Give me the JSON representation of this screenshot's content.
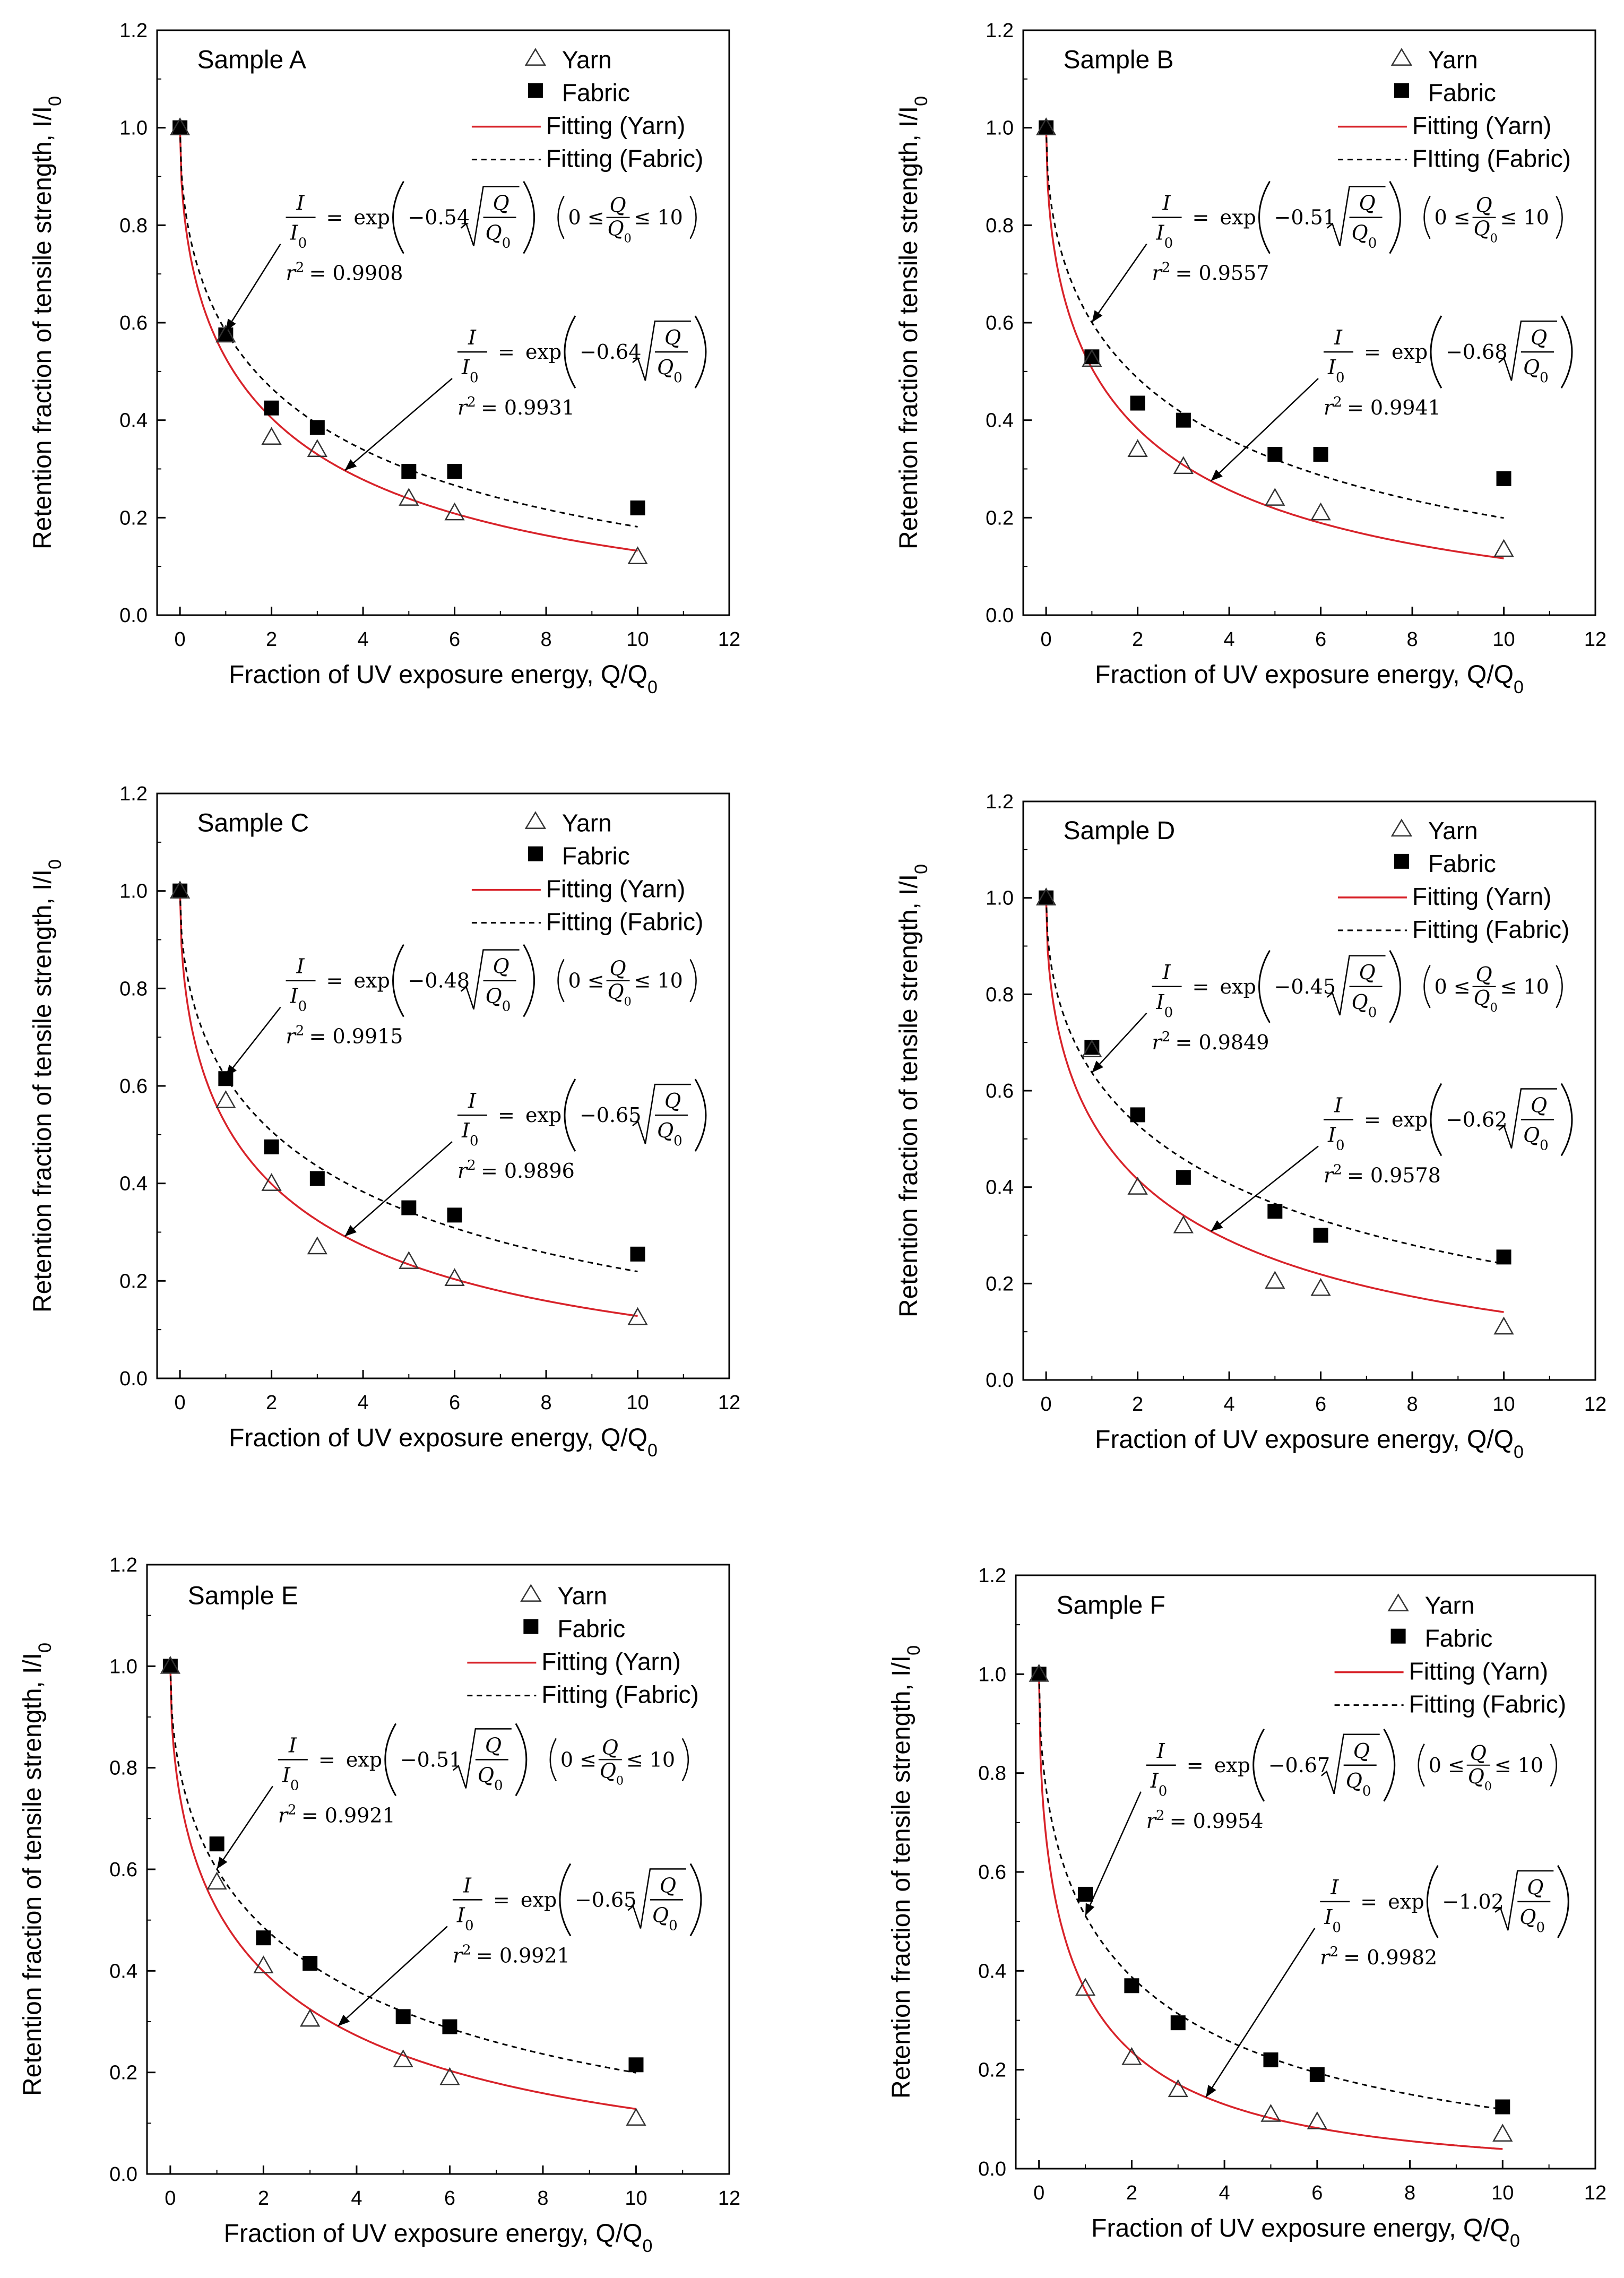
{
  "colors": {
    "yarn_fit": "#d8232a",
    "fabric_fit": "#000000",
    "axis": "#000000"
  },
  "chart_data": [
    {
      "type": "scatter",
      "title": "Sample A",
      "xlabel": "Fraction of UV exposure energy, Q/Q",
      "xlabel_sub": "0",
      "ylabel": "Retention fraction of tensile strength, I/I",
      "ylabel_sub": "0",
      "xlim": [
        -0.5,
        12
      ],
      "ylim": [
        0,
        1.2
      ],
      "x_ticks": [
        0,
        2,
        4,
        6,
        8,
        10,
        12
      ],
      "y_ticks": [
        0.0,
        0.2,
        0.4,
        0.6,
        0.8,
        1.0,
        1.2
      ],
      "legend": [
        "Yarn",
        "Fabric",
        "Fitting (Yarn)",
        "Fitting (Fabric)"
      ],
      "series": [
        {
          "name": "Yarn",
          "marker": "open-triangle",
          "x": [
            0,
            1,
            2,
            3,
            5,
            6,
            10
          ],
          "y": [
            1.0,
            0.575,
            0.365,
            0.34,
            0.24,
            0.21,
            0.12
          ]
        },
        {
          "name": "Fabric",
          "marker": "filled-square",
          "x": [
            0,
            1,
            2,
            3,
            5,
            6,
            10
          ],
          "y": [
            1.0,
            0.575,
            0.425,
            0.385,
            0.295,
            0.295,
            0.22
          ]
        }
      ],
      "fits": [
        {
          "name": "Fitting (Yarn)",
          "k": 0.64,
          "style": "solid-red",
          "text_a": "0.64",
          "r2": "0.9931",
          "range": ""
        },
        {
          "name": "Fitting (Fabric)",
          "k": 0.54,
          "style": "dashed-black",
          "text_a": "0.54",
          "r2": "0.9908",
          "range": "0 ≤ Q/Q0 ≤ 10"
        }
      ]
    },
    {
      "type": "scatter",
      "title": "Sample B",
      "xlabel": "Fraction of UV exposure energy, Q/Q",
      "xlabel_sub": "0",
      "ylabel": "Retention fraction of tensile strength, I/I",
      "ylabel_sub": "0",
      "xlim": [
        -0.5,
        12
      ],
      "ylim": [
        0,
        1.2
      ],
      "x_ticks": [
        0,
        2,
        4,
        6,
        8,
        10,
        12
      ],
      "y_ticks": [
        0.0,
        0.2,
        0.4,
        0.6,
        0.8,
        1.0,
        1.2
      ],
      "legend": [
        "Yarn",
        "Fabric",
        "Fitting (Yarn)",
        "FItting (Fabric)"
      ],
      "series": [
        {
          "name": "Yarn",
          "marker": "open-triangle",
          "x": [
            0,
            1,
            2,
            3,
            5,
            6,
            10
          ],
          "y": [
            1.0,
            0.525,
            0.34,
            0.305,
            0.24,
            0.21,
            0.135
          ]
        },
        {
          "name": "Fabric",
          "marker": "filled-square",
          "x": [
            0,
            1,
            2,
            3,
            5,
            6,
            10
          ],
          "y": [
            1.0,
            0.53,
            0.435,
            0.4,
            0.33,
            0.33,
            0.28
          ]
        }
      ],
      "fits": [
        {
          "name": "Fitting (Yarn)",
          "k": 0.68,
          "style": "solid-red",
          "text_a": "0.68",
          "r2": "0.9941",
          "range": ""
        },
        {
          "name": "FItting (Fabric)",
          "k": 0.51,
          "style": "dashed-black",
          "text_a": "0.51",
          "r2": "0.9557",
          "range": "0 ≤ Q/Q0 ≤ 10"
        }
      ]
    },
    {
      "type": "scatter",
      "title": "Sample C",
      "xlabel": "Fraction of UV exposure energy, Q/Q",
      "xlabel_sub": "0",
      "ylabel": "Retention fraction of tensile strength, I/I",
      "ylabel_sub": "0",
      "xlim": [
        -0.5,
        12
      ],
      "ylim": [
        0,
        1.2
      ],
      "x_ticks": [
        0,
        2,
        4,
        6,
        8,
        10,
        12
      ],
      "y_ticks": [
        0.0,
        0.2,
        0.4,
        0.6,
        0.8,
        1.0,
        1.2
      ],
      "legend": [
        "Yarn",
        "Fabric",
        "Fitting (Yarn)",
        "Fitting (Fabric)"
      ],
      "series": [
        {
          "name": "Yarn",
          "marker": "open-triangle",
          "x": [
            0,
            1,
            2,
            3,
            5,
            6,
            10
          ],
          "y": [
            1.0,
            0.57,
            0.4,
            0.27,
            0.24,
            0.205,
            0.125
          ]
        },
        {
          "name": "Fabric",
          "marker": "filled-square",
          "x": [
            0,
            1,
            2,
            3,
            5,
            6,
            10
          ],
          "y": [
            1.0,
            0.615,
            0.475,
            0.41,
            0.35,
            0.335,
            0.255
          ]
        }
      ],
      "fits": [
        {
          "name": "Fitting (Yarn)",
          "k": 0.65,
          "style": "solid-red",
          "text_a": "0.65",
          "r2": "0.9896",
          "range": ""
        },
        {
          "name": "Fitting (Fabric)",
          "k": 0.48,
          "style": "dashed-black",
          "text_a": "0.48",
          "r2": "0.9915",
          "range": "0 ≤ Q/Q0 ≤ 10"
        }
      ]
    },
    {
      "type": "scatter",
      "title": "Sample D",
      "xlabel": "Fraction of UV exposure energy, Q/Q",
      "xlabel_sub": "0",
      "ylabel": "Retention fraction of tensile strength, I/I",
      "ylabel_sub": "0",
      "xlim": [
        -0.5,
        12
      ],
      "ylim": [
        0,
        1.2
      ],
      "x_ticks": [
        0,
        2,
        4,
        6,
        8,
        10,
        12
      ],
      "y_ticks": [
        0.0,
        0.2,
        0.4,
        0.6,
        0.8,
        1.0,
        1.2
      ],
      "legend": [
        "Yarn",
        "Fabric",
        "Fitting (Yarn)",
        "Fitting (Fabric)"
      ],
      "series": [
        {
          "name": "Yarn",
          "marker": "open-triangle",
          "x": [
            0,
            1,
            2,
            3,
            5,
            6,
            10
          ],
          "y": [
            1.0,
            0.685,
            0.4,
            0.32,
            0.205,
            0.19,
            0.11
          ]
        },
        {
          "name": "Fabric",
          "marker": "filled-square",
          "x": [
            0,
            1,
            2,
            3,
            5,
            6,
            10
          ],
          "y": [
            1.0,
            0.69,
            0.55,
            0.42,
            0.35,
            0.3,
            0.255
          ]
        }
      ],
      "fits": [
        {
          "name": "Fitting (Yarn)",
          "k": 0.62,
          "style": "solid-red",
          "text_a": "0.62",
          "r2": "0.9578",
          "range": ""
        },
        {
          "name": "Fitting (Fabric)",
          "k": 0.45,
          "style": "dashed-black",
          "text_a": "0.45",
          "r2": "0.9849",
          "range": "0 ≤ Q/Q0 ≤ 10"
        }
      ]
    },
    {
      "type": "scatter",
      "title": "Sample E",
      "xlabel": "Fraction of UV exposure energy, Q/Q",
      "xlabel_sub": "0",
      "ylabel": "Retention fraction of tensile strength, I/I",
      "ylabel_sub": "0",
      "xlim": [
        -0.5,
        12
      ],
      "ylim": [
        0,
        1.2
      ],
      "x_ticks": [
        0,
        2,
        4,
        6,
        8,
        10,
        12
      ],
      "y_ticks": [
        0.0,
        0.2,
        0.4,
        0.6,
        0.8,
        1.0,
        1.2
      ],
      "legend": [
        "Yarn",
        "Fabric",
        "Fitting (Yarn)",
        "Fitting (Fabric)"
      ],
      "series": [
        {
          "name": "Yarn",
          "marker": "open-triangle",
          "x": [
            0,
            1,
            2,
            3,
            5,
            6,
            10
          ],
          "y": [
            1.0,
            0.575,
            0.41,
            0.305,
            0.225,
            0.19,
            0.11
          ]
        },
        {
          "name": "Fabric",
          "marker": "filled-square",
          "x": [
            0,
            1,
            2,
            3,
            5,
            6,
            10
          ],
          "y": [
            1.0,
            0.65,
            0.465,
            0.415,
            0.31,
            0.29,
            0.215
          ]
        }
      ],
      "fits": [
        {
          "name": "Fitting (Yarn)",
          "k": 0.65,
          "style": "solid-red",
          "text_a": "0.65",
          "r2": "0.9921",
          "range": ""
        },
        {
          "name": "Fitting (Fabric)",
          "k": 0.51,
          "style": "dashed-black",
          "text_a": "0.51",
          "r2": "0.9921",
          "range": "0 ≤ Q/Q0 ≤ 10"
        }
      ]
    },
    {
      "type": "scatter",
      "title": "Sample F",
      "xlabel": "Fraction of UV exposure energy, Q/Q",
      "xlabel_sub": "0",
      "ylabel": "Retention fraction of tensile strength, I/I",
      "ylabel_sub": "0",
      "xlim": [
        -0.5,
        12
      ],
      "ylim": [
        0,
        1.2
      ],
      "x_ticks": [
        0,
        2,
        4,
        6,
        8,
        10,
        12
      ],
      "y_ticks": [
        0.0,
        0.2,
        0.4,
        0.6,
        0.8,
        1.0,
        1.2
      ],
      "legend": [
        "Yarn",
        "Fabric",
        "Fitting (Yarn)",
        "Fitting (Fabric)"
      ],
      "series": [
        {
          "name": "Yarn",
          "marker": "open-triangle",
          "x": [
            0,
            1,
            2,
            3,
            5,
            6,
            10
          ],
          "y": [
            1.0,
            0.365,
            0.225,
            0.16,
            0.11,
            0.095,
            0.07
          ]
        },
        {
          "name": "Fabric",
          "marker": "filled-square",
          "x": [
            0,
            1,
            2,
            3,
            5,
            6,
            10
          ],
          "y": [
            1.0,
            0.555,
            0.37,
            0.295,
            0.22,
            0.19,
            0.125
          ]
        }
      ],
      "fits": [
        {
          "name": "Fitting (Yarn)",
          "k": 1.02,
          "style": "solid-red",
          "text_a": "1.02",
          "r2": "0.9982",
          "range": ""
        },
        {
          "name": "Fitting (Fabric)",
          "k": 0.67,
          "style": "dashed-black",
          "text_a": "0.67",
          "r2": "0.9954",
          "range": "0 ≤ Q/Q0 ≤ 10"
        }
      ]
    }
  ]
}
